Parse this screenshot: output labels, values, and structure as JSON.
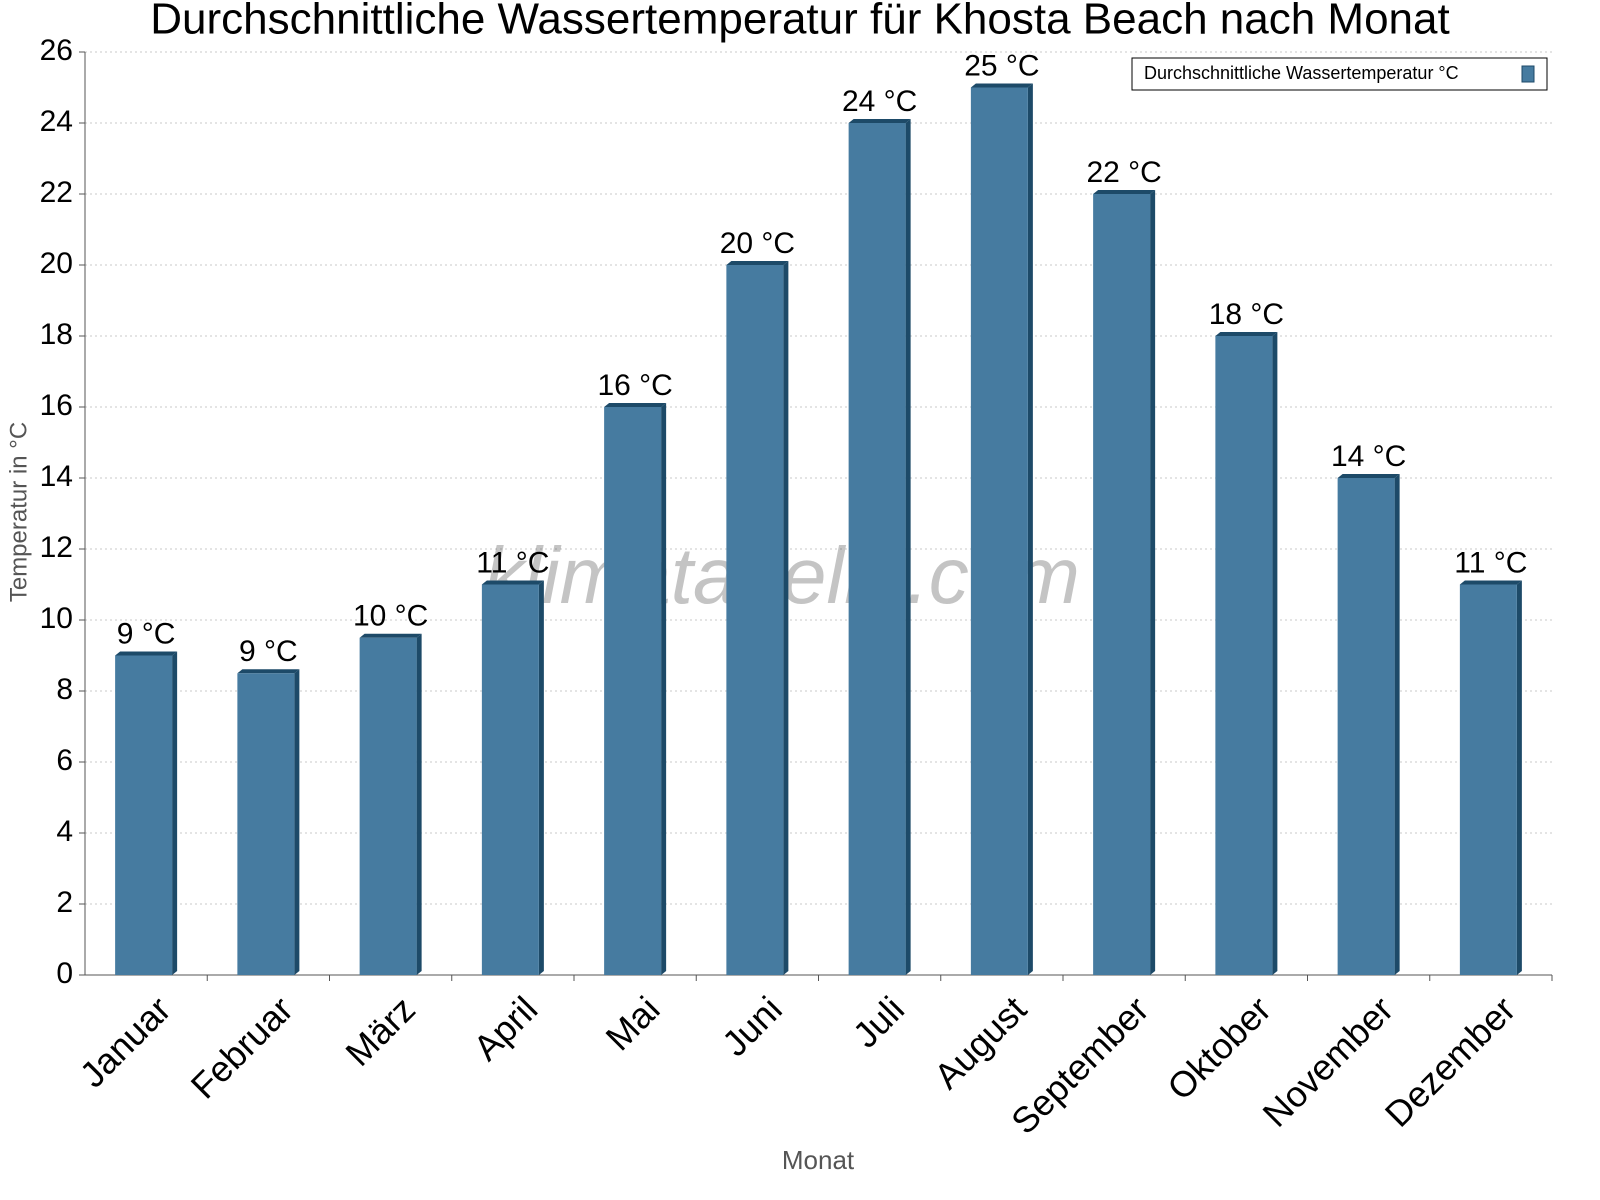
{
  "chart_data": {
    "type": "bar",
    "title": "Durchschnittliche Wassertemperatur für Khosta Beach nach Monat",
    "x_label": "Monat",
    "y_label": "Temperatur in °C",
    "watermark": "klimatabelle.com",
    "categories": [
      "Januar",
      "Februar",
      "März",
      "April",
      "Mai",
      "Juni",
      "Juli",
      "August",
      "September",
      "Oktober",
      "November",
      "Dezember"
    ],
    "series": [
      {
        "name": "Durchschnittliche Wassertemperatur °C",
        "color": "#467ba0",
        "values": [
          9,
          8.5,
          9.5,
          11,
          16,
          20,
          24,
          25,
          22,
          18,
          14,
          11
        ],
        "value_labels": [
          "9 °C",
          "9 °C",
          "10 °C",
          "11 °C",
          "16 °C",
          "20 °C",
          "24 °C",
          "25 °C",
          "22 °C",
          "18 °C",
          "14 °C",
          "11 °C"
        ]
      }
    ],
    "ylim": [
      0,
      26
    ],
    "yticks": [
      0,
      2,
      4,
      6,
      8,
      10,
      12,
      14,
      16,
      18,
      20,
      22,
      24,
      26
    ],
    "grid": true,
    "legend": "top-right"
  }
}
